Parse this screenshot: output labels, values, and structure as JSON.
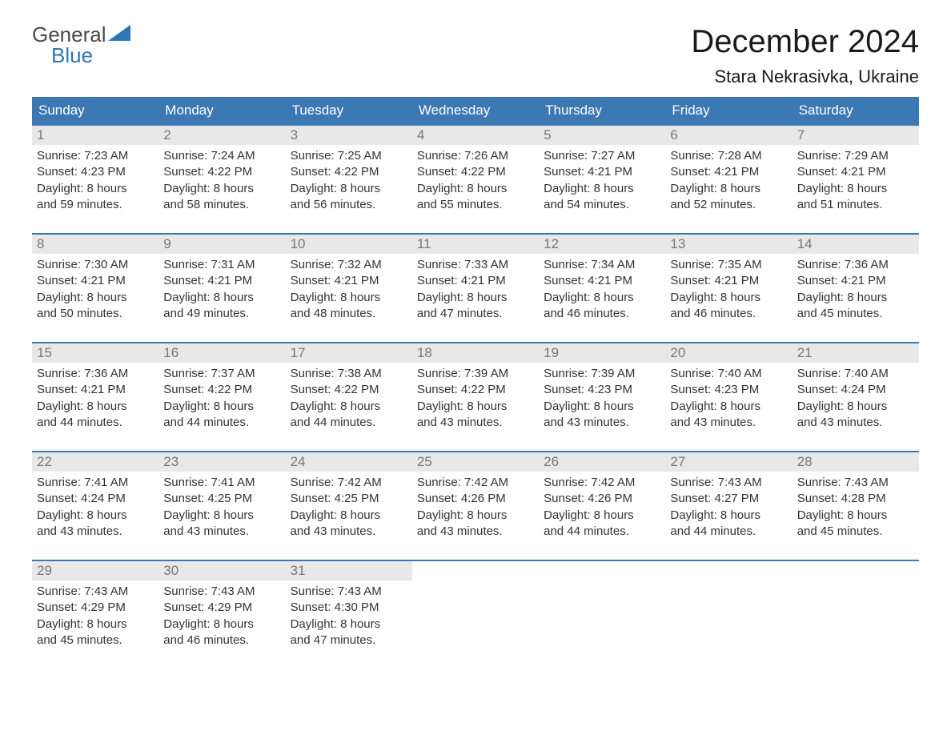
{
  "logo": {
    "word1": "General",
    "word2": "Blue"
  },
  "title": "December 2024",
  "location": "Stara Nekrasivka, Ukraine",
  "day_headers": [
    "Sunday",
    "Monday",
    "Tuesday",
    "Wednesday",
    "Thursday",
    "Friday",
    "Saturday"
  ],
  "colors": {
    "header_bg": "#3c78b4",
    "header_text": "#ffffff",
    "week_border": "#3c78b4",
    "daynum_bg": "#e8e8e8",
    "daynum_text": "#777777",
    "body_text": "#333333",
    "title_text": "#1a1a1a",
    "logo_gray": "#4a4a4a",
    "logo_blue": "#2f75b5",
    "background": "#ffffff"
  },
  "typography": {
    "title_fontsize": 40,
    "location_fontsize": 22,
    "dayheader_fontsize": 17,
    "daynum_fontsize": 17,
    "cell_fontsize": 15
  },
  "weeks": [
    [
      {
        "day": "1",
        "sunrise": "Sunrise: 7:23 AM",
        "sunset": "Sunset: 4:23 PM",
        "dl1": "Daylight: 8 hours",
        "dl2": "and 59 minutes."
      },
      {
        "day": "2",
        "sunrise": "Sunrise: 7:24 AM",
        "sunset": "Sunset: 4:22 PM",
        "dl1": "Daylight: 8 hours",
        "dl2": "and 58 minutes."
      },
      {
        "day": "3",
        "sunrise": "Sunrise: 7:25 AM",
        "sunset": "Sunset: 4:22 PM",
        "dl1": "Daylight: 8 hours",
        "dl2": "and 56 minutes."
      },
      {
        "day": "4",
        "sunrise": "Sunrise: 7:26 AM",
        "sunset": "Sunset: 4:22 PM",
        "dl1": "Daylight: 8 hours",
        "dl2": "and 55 minutes."
      },
      {
        "day": "5",
        "sunrise": "Sunrise: 7:27 AM",
        "sunset": "Sunset: 4:21 PM",
        "dl1": "Daylight: 8 hours",
        "dl2": "and 54 minutes."
      },
      {
        "day": "6",
        "sunrise": "Sunrise: 7:28 AM",
        "sunset": "Sunset: 4:21 PM",
        "dl1": "Daylight: 8 hours",
        "dl2": "and 52 minutes."
      },
      {
        "day": "7",
        "sunrise": "Sunrise: 7:29 AM",
        "sunset": "Sunset: 4:21 PM",
        "dl1": "Daylight: 8 hours",
        "dl2": "and 51 minutes."
      }
    ],
    [
      {
        "day": "8",
        "sunrise": "Sunrise: 7:30 AM",
        "sunset": "Sunset: 4:21 PM",
        "dl1": "Daylight: 8 hours",
        "dl2": "and 50 minutes."
      },
      {
        "day": "9",
        "sunrise": "Sunrise: 7:31 AM",
        "sunset": "Sunset: 4:21 PM",
        "dl1": "Daylight: 8 hours",
        "dl2": "and 49 minutes."
      },
      {
        "day": "10",
        "sunrise": "Sunrise: 7:32 AM",
        "sunset": "Sunset: 4:21 PM",
        "dl1": "Daylight: 8 hours",
        "dl2": "and 48 minutes."
      },
      {
        "day": "11",
        "sunrise": "Sunrise: 7:33 AM",
        "sunset": "Sunset: 4:21 PM",
        "dl1": "Daylight: 8 hours",
        "dl2": "and 47 minutes."
      },
      {
        "day": "12",
        "sunrise": "Sunrise: 7:34 AM",
        "sunset": "Sunset: 4:21 PM",
        "dl1": "Daylight: 8 hours",
        "dl2": "and 46 minutes."
      },
      {
        "day": "13",
        "sunrise": "Sunrise: 7:35 AM",
        "sunset": "Sunset: 4:21 PM",
        "dl1": "Daylight: 8 hours",
        "dl2": "and 46 minutes."
      },
      {
        "day": "14",
        "sunrise": "Sunrise: 7:36 AM",
        "sunset": "Sunset: 4:21 PM",
        "dl1": "Daylight: 8 hours",
        "dl2": "and 45 minutes."
      }
    ],
    [
      {
        "day": "15",
        "sunrise": "Sunrise: 7:36 AM",
        "sunset": "Sunset: 4:21 PM",
        "dl1": "Daylight: 8 hours",
        "dl2": "and 44 minutes."
      },
      {
        "day": "16",
        "sunrise": "Sunrise: 7:37 AM",
        "sunset": "Sunset: 4:22 PM",
        "dl1": "Daylight: 8 hours",
        "dl2": "and 44 minutes."
      },
      {
        "day": "17",
        "sunrise": "Sunrise: 7:38 AM",
        "sunset": "Sunset: 4:22 PM",
        "dl1": "Daylight: 8 hours",
        "dl2": "and 44 minutes."
      },
      {
        "day": "18",
        "sunrise": "Sunrise: 7:39 AM",
        "sunset": "Sunset: 4:22 PM",
        "dl1": "Daylight: 8 hours",
        "dl2": "and 43 minutes."
      },
      {
        "day": "19",
        "sunrise": "Sunrise: 7:39 AM",
        "sunset": "Sunset: 4:23 PM",
        "dl1": "Daylight: 8 hours",
        "dl2": "and 43 minutes."
      },
      {
        "day": "20",
        "sunrise": "Sunrise: 7:40 AM",
        "sunset": "Sunset: 4:23 PM",
        "dl1": "Daylight: 8 hours",
        "dl2": "and 43 minutes."
      },
      {
        "day": "21",
        "sunrise": "Sunrise: 7:40 AM",
        "sunset": "Sunset: 4:24 PM",
        "dl1": "Daylight: 8 hours",
        "dl2": "and 43 minutes."
      }
    ],
    [
      {
        "day": "22",
        "sunrise": "Sunrise: 7:41 AM",
        "sunset": "Sunset: 4:24 PM",
        "dl1": "Daylight: 8 hours",
        "dl2": "and 43 minutes."
      },
      {
        "day": "23",
        "sunrise": "Sunrise: 7:41 AM",
        "sunset": "Sunset: 4:25 PM",
        "dl1": "Daylight: 8 hours",
        "dl2": "and 43 minutes."
      },
      {
        "day": "24",
        "sunrise": "Sunrise: 7:42 AM",
        "sunset": "Sunset: 4:25 PM",
        "dl1": "Daylight: 8 hours",
        "dl2": "and 43 minutes."
      },
      {
        "day": "25",
        "sunrise": "Sunrise: 7:42 AM",
        "sunset": "Sunset: 4:26 PM",
        "dl1": "Daylight: 8 hours",
        "dl2": "and 43 minutes."
      },
      {
        "day": "26",
        "sunrise": "Sunrise: 7:42 AM",
        "sunset": "Sunset: 4:26 PM",
        "dl1": "Daylight: 8 hours",
        "dl2": "and 44 minutes."
      },
      {
        "day": "27",
        "sunrise": "Sunrise: 7:43 AM",
        "sunset": "Sunset: 4:27 PM",
        "dl1": "Daylight: 8 hours",
        "dl2": "and 44 minutes."
      },
      {
        "day": "28",
        "sunrise": "Sunrise: 7:43 AM",
        "sunset": "Sunset: 4:28 PM",
        "dl1": "Daylight: 8 hours",
        "dl2": "and 45 minutes."
      }
    ],
    [
      {
        "day": "29",
        "sunrise": "Sunrise: 7:43 AM",
        "sunset": "Sunset: 4:29 PM",
        "dl1": "Daylight: 8 hours",
        "dl2": "and 45 minutes."
      },
      {
        "day": "30",
        "sunrise": "Sunrise: 7:43 AM",
        "sunset": "Sunset: 4:29 PM",
        "dl1": "Daylight: 8 hours",
        "dl2": "and 46 minutes."
      },
      {
        "day": "31",
        "sunrise": "Sunrise: 7:43 AM",
        "sunset": "Sunset: 4:30 PM",
        "dl1": "Daylight: 8 hours",
        "dl2": "and 47 minutes."
      },
      null,
      null,
      null,
      null
    ]
  ]
}
